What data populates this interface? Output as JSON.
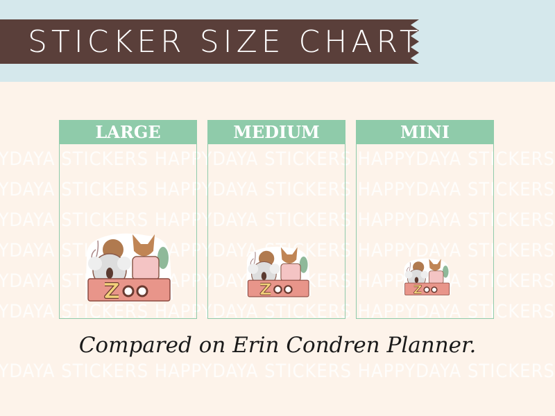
{
  "banner": {
    "title": "STICKER SIZE CHART"
  },
  "watermark": {
    "text": "HAPPYDAYA STICKERS"
  },
  "panels": [
    {
      "label": "LARGE",
      "sticker": "zoo-sticker"
    },
    {
      "label": "MEDIUM",
      "sticker": "zoo-sticker"
    },
    {
      "label": "MINI",
      "sticker": "zoo-sticker"
    }
  ],
  "caption": "Compared on Erin Condren Planner.",
  "colors": {
    "band": "#d5e8ec",
    "ribbon": "#5a3f3a",
    "background": "#fdf3ea",
    "panel_accent": "#8fcbaa"
  }
}
